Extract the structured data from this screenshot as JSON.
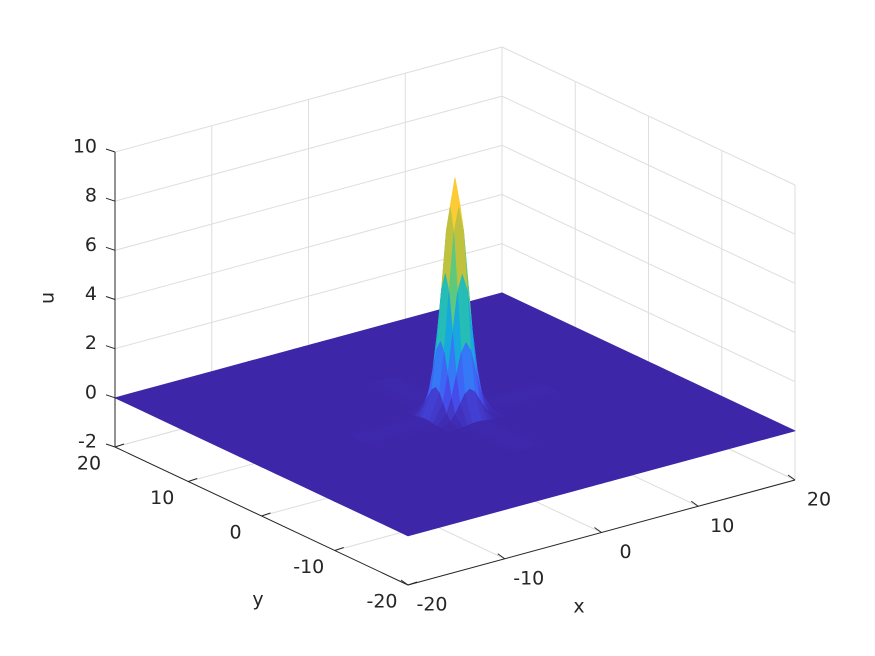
{
  "chart_data": {
    "type": "mesh",
    "xlabel": "x",
    "ylabel": "y",
    "zlabel": "u",
    "x": [
      -20,
      -10,
      -3,
      -2,
      -1.5,
      -1,
      -0.5,
      0,
      0.5,
      1,
      1.5,
      2,
      3,
      10,
      20
    ],
    "y": [
      -20,
      -10,
      -3,
      -2,
      -1.5,
      -1,
      -0.5,
      0,
      0.5,
      1,
      1.5,
      2,
      3,
      10,
      20
    ],
    "z": [
      [
        0,
        0,
        0,
        0,
        0,
        0,
        0,
        0,
        0,
        0,
        0,
        0,
        0,
        0,
        0
      ],
      [
        0,
        0,
        0,
        0,
        0,
        0,
        0,
        0,
        0,
        0,
        0,
        0,
        0,
        0,
        0
      ],
      [
        0,
        0,
        0,
        0.01,
        0.03,
        0.06,
        0.09,
        0.11,
        0.09,
        0.06,
        0.03,
        0.01,
        0,
        0,
        0
      ],
      [
        0,
        0,
        0.01,
        0.18,
        0.42,
        0.79,
        1.15,
        1.3,
        1.15,
        0.79,
        0.42,
        0.18,
        0.01,
        0,
        0
      ],
      [
        0,
        0,
        0.03,
        0.42,
        1.01,
        1.89,
        2.75,
        3.12,
        2.75,
        1.89,
        1.01,
        0.42,
        0.03,
        0,
        0
      ],
      [
        0,
        0,
        0.06,
        0.79,
        1.89,
        3.53,
        5.14,
        5.82,
        5.14,
        3.53,
        1.89,
        0.79,
        0.06,
        0,
        0
      ],
      [
        0,
        0,
        0.09,
        1.15,
        2.75,
        5.14,
        7.48,
        8.47,
        7.48,
        5.14,
        2.75,
        1.15,
        0.09,
        0,
        0
      ],
      [
        0,
        0,
        0.11,
        1.3,
        3.12,
        5.82,
        8.47,
        9.6,
        8.47,
        5.82,
        3.12,
        1.3,
        0.11,
        0,
        0
      ],
      [
        0,
        0,
        0.09,
        1.15,
        2.75,
        5.14,
        7.48,
        8.47,
        7.48,
        5.14,
        2.75,
        1.15,
        0.09,
        0,
        0
      ],
      [
        0,
        0,
        0.06,
        0.79,
        1.89,
        3.53,
        5.14,
        5.82,
        5.14,
        3.53,
        1.89,
        0.79,
        0.06,
        0,
        0
      ],
      [
        0,
        0,
        0.03,
        0.42,
        1.01,
        1.89,
        2.75,
        3.12,
        2.75,
        1.89,
        1.01,
        0.42,
        0.03,
        0,
        0
      ],
      [
        0,
        0,
        0.01,
        0.18,
        0.42,
        0.79,
        1.15,
        1.3,
        1.15,
        0.79,
        0.42,
        0.18,
        0.01,
        0,
        0
      ],
      [
        0,
        0,
        0,
        0.01,
        0.03,
        0.06,
        0.09,
        0.11,
        0.09,
        0.06,
        0.03,
        0.01,
        0,
        0,
        0
      ],
      [
        0,
        0,
        0,
        0,
        0,
        0,
        0,
        0,
        0,
        0,
        0,
        0,
        0,
        0,
        0
      ],
      [
        0,
        0,
        0,
        0,
        0,
        0,
        0,
        0,
        0,
        0,
        0,
        0,
        0,
        0,
        0
      ]
    ],
    "xlim": [
      -20,
      20
    ],
    "ylim": [
      -20,
      20
    ],
    "zlim": [
      -2,
      10
    ],
    "xticks": [
      -20,
      -10,
      0,
      10,
      20
    ],
    "yticks": [
      -20,
      -10,
      0,
      10,
      20
    ],
    "zticks": [
      -2,
      0,
      2,
      4,
      6,
      8,
      10
    ],
    "grid": true,
    "colormap": "parula"
  }
}
